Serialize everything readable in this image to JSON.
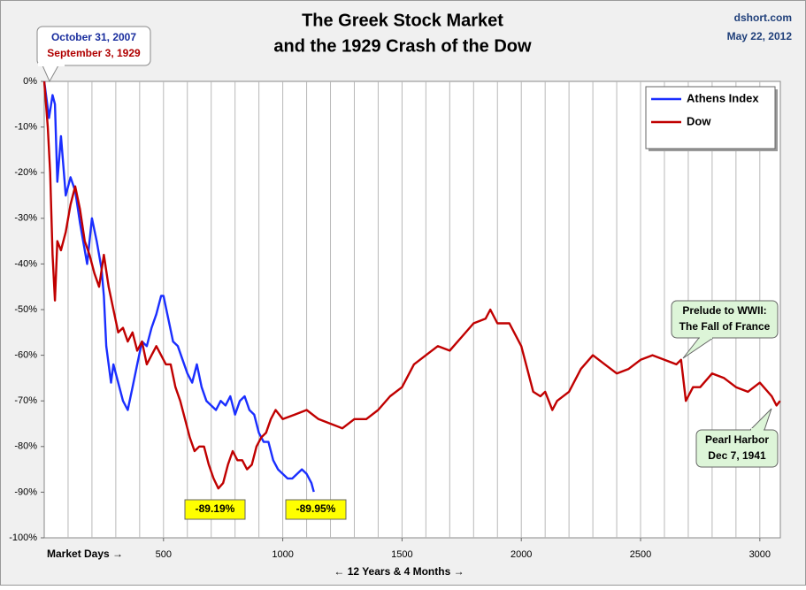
{
  "chart_data": {
    "type": "line",
    "title": "The Greek Stock Market",
    "subtitle": "and the 1929 Crash of the Dow",
    "source": "dshort.com",
    "date": "May 22, 2012",
    "xlabel": "Market Days →",
    "xlabel_span": "← 12 Years & 4 Months →",
    "xlim": [
      0,
      3086
    ],
    "xticks": [
      500,
      1000,
      1500,
      2000,
      2500,
      3000
    ],
    "xgrid_step": 100,
    "ylim": [
      -100,
      0
    ],
    "yticks": [
      {
        "value": 0,
        "label": "0%"
      },
      {
        "value": -10,
        "label": "-10%"
      },
      {
        "value": -20,
        "label": "-20%"
      },
      {
        "value": -30,
        "label": "-30%"
      },
      {
        "value": -40,
        "label": "-40%"
      },
      {
        "value": -50,
        "label": "-50%"
      },
      {
        "value": -60,
        "label": "-60%"
      },
      {
        "value": -70,
        "label": "-70%"
      },
      {
        "value": -80,
        "label": "-80%"
      },
      {
        "value": -90,
        "label": "-90%"
      },
      {
        "value": -100,
        "label": "-100%"
      }
    ],
    "grid": true,
    "legend": "top-right",
    "series": [
      {
        "name": "Athens Index",
        "color": "#1a2eff",
        "x": [
          0,
          20,
          35,
          45,
          55,
          70,
          90,
          110,
          130,
          150,
          170,
          180,
          200,
          220,
          240,
          250,
          260,
          280,
          290,
          310,
          330,
          350,
          370,
          390,
          410,
          430,
          450,
          470,
          490,
          500,
          520,
          540,
          560,
          580,
          600,
          620,
          640,
          660,
          680,
          700,
          720,
          740,
          760,
          780,
          800,
          820,
          840,
          860,
          880,
          900,
          920,
          940,
          960,
          980,
          1000,
          1020,
          1040,
          1060,
          1080,
          1100,
          1120,
          1130
        ],
        "values": [
          0,
          -8,
          -3,
          -5,
          -22,
          -12,
          -25,
          -21,
          -24,
          -31,
          -37,
          -40,
          -30,
          -35,
          -41,
          -47,
          -58,
          -66,
          -62,
          -66,
          -70,
          -72,
          -67,
          -62,
          -57,
          -58,
          -54,
          -51,
          -47,
          -47,
          -52,
          -57,
          -58,
          -61,
          -64,
          -66,
          -62,
          -67,
          -70,
          -71,
          -72,
          -70,
          -71,
          -69,
          -73,
          -70,
          -69,
          -72,
          -73,
          -77,
          -79,
          -79,
          -83,
          -85,
          -86,
          -87,
          -87,
          -86,
          -85,
          -86,
          -88,
          -89.95
        ]
      },
      {
        "name": "Dow",
        "color": "#c00000",
        "x": [
          0,
          15,
          25,
          35,
          45,
          55,
          70,
          90,
          110,
          130,
          150,
          170,
          190,
          210,
          230,
          250,
          270,
          290,
          310,
          330,
          350,
          370,
          390,
          410,
          430,
          450,
          470,
          490,
          510,
          530,
          550,
          570,
          590,
          610,
          630,
          650,
          670,
          690,
          710,
          730,
          750,
          770,
          790,
          810,
          830,
          850,
          870,
          890,
          910,
          930,
          950,
          970,
          1000,
          1050,
          1100,
          1150,
          1200,
          1250,
          1300,
          1350,
          1400,
          1450,
          1500,
          1550,
          1600,
          1650,
          1700,
          1750,
          1800,
          1850,
          1870,
          1900,
          1950,
          2000,
          2020,
          2050,
          2080,
          2100,
          2130,
          2150,
          2200,
          2250,
          2300,
          2350,
          2400,
          2450,
          2500,
          2550,
          2600,
          2650,
          2670,
          2690,
          2720,
          2750,
          2800,
          2850,
          2900,
          2950,
          3000,
          3050,
          3070,
          3085
        ],
        "values": [
          0,
          -10,
          -20,
          -38,
          -48,
          -35,
          -37,
          -33,
          -27,
          -23,
          -28,
          -35,
          -38,
          -42,
          -45,
          -38,
          -45,
          -50,
          -55,
          -54,
          -57,
          -55,
          -59,
          -57,
          -62,
          -60,
          -58,
          -60,
          -62,
          -62,
          -67,
          -70,
          -74,
          -78,
          -81,
          -80,
          -80,
          -84,
          -87,
          -89.19,
          -88,
          -84,
          -81,
          -83,
          -83,
          -85,
          -84,
          -80,
          -78,
          -77,
          -74,
          -72,
          -74,
          -73,
          -72,
          -74,
          -75,
          -76,
          -74,
          -74,
          -72,
          -69,
          -67,
          -62,
          -60,
          -58,
          -59,
          -56,
          -53,
          -52,
          -50,
          -53,
          -53,
          -58,
          -62,
          -68,
          -69,
          -68,
          -72,
          -70,
          -68,
          -63,
          -60,
          -62,
          -64,
          -63,
          -61,
          -60,
          -61,
          -62,
          -61,
          -70,
          -67,
          -67,
          -64,
          -65,
          -67,
          -68,
          -66,
          -69,
          -71,
          -70
        ]
      }
    ],
    "annotations": {
      "start_labels": [
        "October 31, 2007",
        "September 3, 1929"
      ],
      "dow_low_label": "-89.19%",
      "athens_low_label": "-89.95%",
      "france_note": [
        "Prelude to WWII:",
        "The Fall of France"
      ],
      "pearl_harbor_note": [
        "Pearl Harbor",
        "Dec 7, 1941"
      ]
    }
  }
}
